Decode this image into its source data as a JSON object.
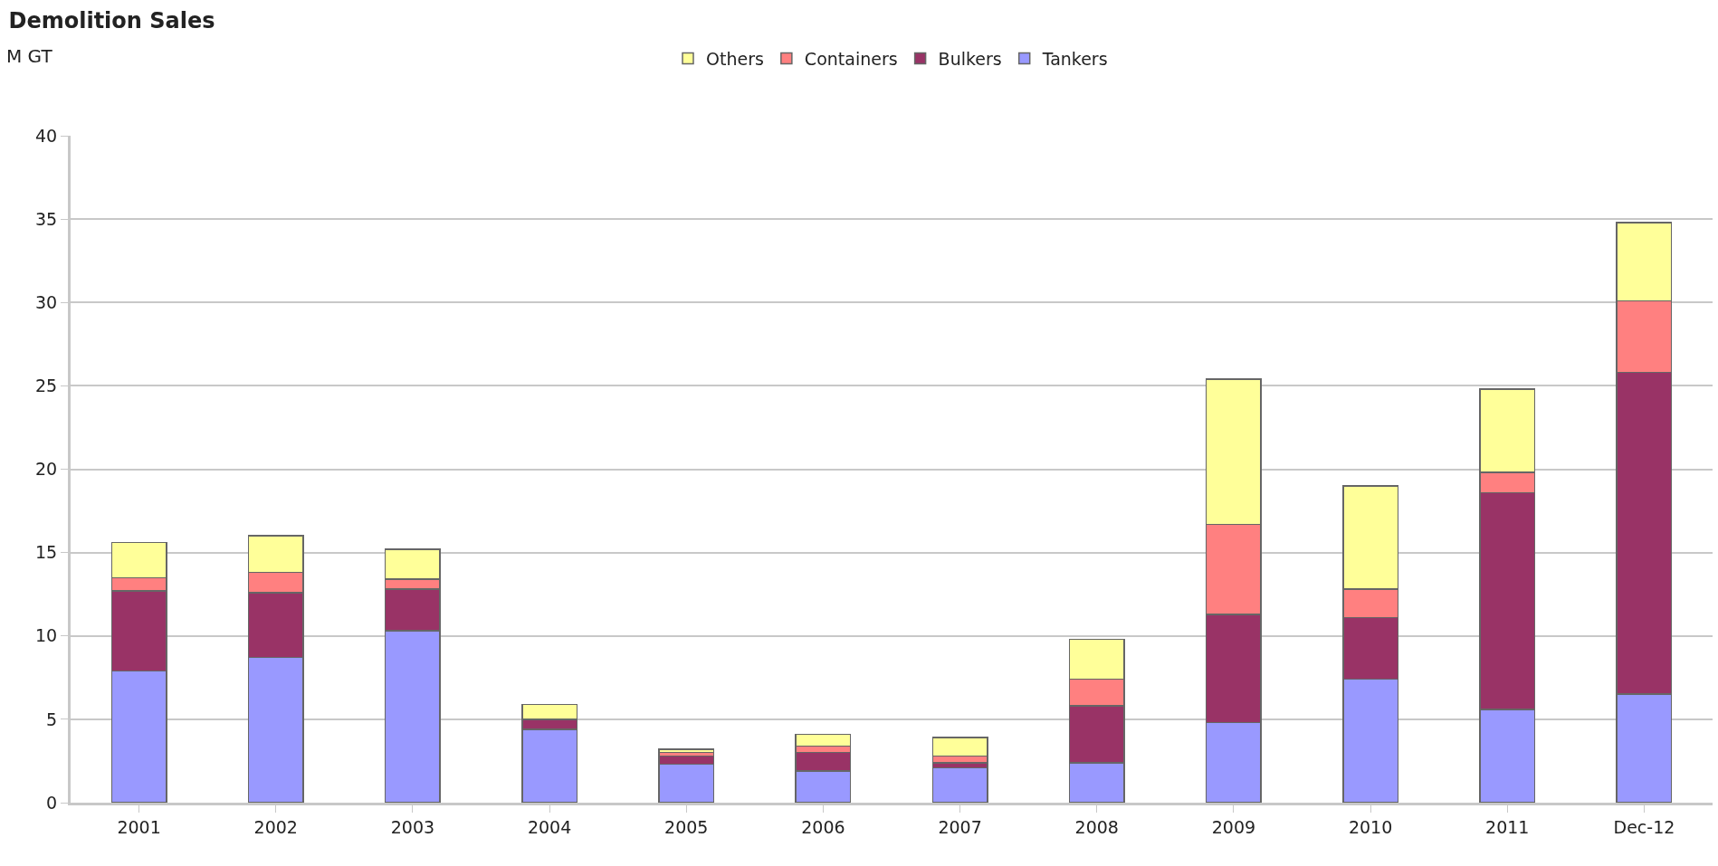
{
  "chart_data": {
    "type": "bar",
    "title": "Demolition Sales",
    "ylabel": "M GT",
    "stacked": true,
    "categories": [
      "2001",
      "2002",
      "2003",
      "2004",
      "2005",
      "2006",
      "2007",
      "2008",
      "2009",
      "2010",
      "2011",
      "Dec-12"
    ],
    "series": [
      {
        "name": "Tankers",
        "color": "#9999ff",
        "values": [
          7.9,
          8.7,
          10.3,
          4.4,
          2.3,
          1.9,
          2.1,
          2.4,
          4.8,
          7.4,
          5.6,
          6.5
        ]
      },
      {
        "name": "Bulkers",
        "color": "#993366",
        "values": [
          4.8,
          3.9,
          2.5,
          0.6,
          0.5,
          1.1,
          0.3,
          3.4,
          6.5,
          3.7,
          13.0,
          19.3
        ]
      },
      {
        "name": "Containers",
        "color": "#ff8080",
        "values": [
          0.8,
          1.2,
          0.6,
          0,
          0.2,
          0.4,
          0.4,
          1.6,
          5.4,
          1.7,
          1.2,
          4.3
        ]
      },
      {
        "name": "Others",
        "color": "#ffff99",
        "values": [
          2.1,
          2.2,
          1.8,
          0.9,
          0.2,
          0.7,
          1.1,
          2.4,
          8.7,
          6.2,
          5.0,
          4.7
        ]
      }
    ],
    "ylim": [
      0,
      40
    ],
    "yticks": [
      0,
      5,
      10,
      15,
      20,
      25,
      30,
      35,
      40
    ],
    "grid": "y",
    "legend": "top"
  }
}
